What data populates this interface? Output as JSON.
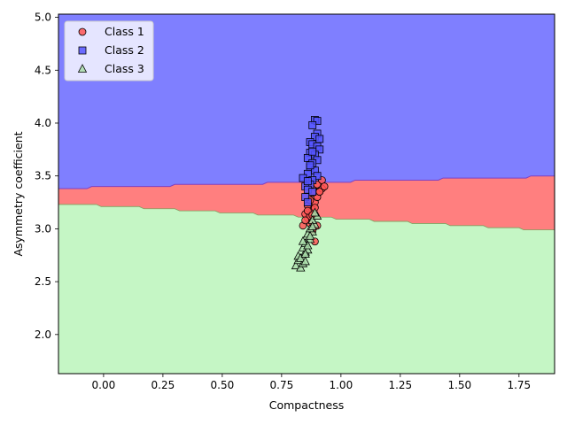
{
  "chart_data": {
    "type": "scatter",
    "title": "",
    "xlabel": "Compactness",
    "ylabel": "Asymmetry coefficient",
    "xlim": [
      -0.19,
      1.9
    ],
    "ylim": [
      1.63,
      5.03
    ],
    "x_ticks": [
      0.0,
      0.25,
      0.5,
      0.75,
      1.0,
      1.25,
      1.5,
      1.75
    ],
    "x_tick_labels": [
      "0.00",
      "0.25",
      "0.50",
      "0.75",
      "1.00",
      "1.25",
      "1.50",
      "1.75"
    ],
    "y_ticks": [
      2.0,
      2.5,
      3.0,
      3.5,
      4.0,
      4.5,
      5.0
    ],
    "y_tick_labels": [
      "2.0",
      "2.5",
      "3.0",
      "3.5",
      "4.0",
      "4.5",
      "5.0"
    ],
    "grid": false,
    "legend_position": "top-left",
    "decision_regions": {
      "colors": {
        "class_1": "#ff7f7f",
        "class_2": "#7f7fff",
        "class_3": "#c5f6c5"
      },
      "boundary_1_2": [
        [
          -0.19,
          3.38
        ],
        [
          -0.07,
          3.38
        ],
        [
          -0.05,
          3.4
        ],
        [
          0.28,
          3.4
        ],
        [
          0.3,
          3.42
        ],
        [
          0.67,
          3.42
        ],
        [
          0.69,
          3.44
        ],
        [
          1.04,
          3.44
        ],
        [
          1.06,
          3.46
        ],
        [
          1.41,
          3.46
        ],
        [
          1.43,
          3.48
        ],
        [
          1.78,
          3.48
        ],
        [
          1.8,
          3.5
        ],
        [
          1.9,
          3.5
        ]
      ],
      "boundary_1_3": [
        [
          -0.19,
          3.23
        ],
        [
          -0.03,
          3.23
        ],
        [
          -0.01,
          3.21
        ],
        [
          0.15,
          3.21
        ],
        [
          0.17,
          3.19
        ],
        [
          0.3,
          3.19
        ],
        [
          0.32,
          3.17
        ],
        [
          0.47,
          3.17
        ],
        [
          0.49,
          3.15
        ],
        [
          0.63,
          3.15
        ],
        [
          0.65,
          3.13
        ],
        [
          0.8,
          3.13
        ],
        [
          0.82,
          3.11
        ],
        [
          0.96,
          3.11
        ],
        [
          0.98,
          3.09
        ],
        [
          1.12,
          3.09
        ],
        [
          1.14,
          3.07
        ],
        [
          1.28,
          3.07
        ],
        [
          1.3,
          3.05
        ],
        [
          1.44,
          3.05
        ],
        [
          1.46,
          3.03
        ],
        [
          1.6,
          3.03
        ],
        [
          1.62,
          3.01
        ],
        [
          1.75,
          3.01
        ],
        [
          1.77,
          2.99
        ],
        [
          1.9,
          2.99
        ]
      ]
    },
    "series": [
      {
        "name": "Class 1",
        "marker": "circle",
        "color": "#ff5555",
        "points": [
          [
            0.84,
            3.03
          ],
          [
            0.86,
            3.1
          ],
          [
            0.85,
            3.14
          ],
          [
            0.87,
            3.12
          ],
          [
            0.88,
            3.18
          ],
          [
            0.86,
            3.22
          ],
          [
            0.89,
            3.25
          ],
          [
            0.9,
            3.3
          ],
          [
            0.88,
            3.34
          ],
          [
            0.91,
            3.36
          ],
          [
            0.92,
            3.38
          ],
          [
            0.9,
            3.42
          ],
          [
            0.92,
            3.46
          ],
          [
            0.89,
            3.2
          ],
          [
            0.87,
            3.05
          ],
          [
            0.88,
            2.98
          ],
          [
            0.89,
            2.88
          ],
          [
            0.86,
            3.17
          ],
          [
            0.9,
            3.03
          ],
          [
            0.91,
            3.35
          ],
          [
            0.87,
            3.27
          ],
          [
            0.93,
            3.4
          ],
          [
            0.85,
            3.08
          ],
          [
            0.88,
            3.13
          ]
        ]
      },
      {
        "name": "Class 2",
        "marker": "square",
        "color": "#5555ff",
        "points": [
          [
            0.89,
            4.03
          ],
          [
            0.9,
            4.02
          ],
          [
            0.88,
            3.98
          ],
          [
            0.9,
            3.9
          ],
          [
            0.89,
            3.87
          ],
          [
            0.87,
            3.82
          ],
          [
            0.88,
            3.8
          ],
          [
            0.9,
            3.78
          ],
          [
            0.91,
            3.75
          ],
          [
            0.87,
            3.72
          ],
          [
            0.89,
            3.7
          ],
          [
            0.86,
            3.67
          ],
          [
            0.9,
            3.65
          ],
          [
            0.88,
            3.62
          ],
          [
            0.87,
            3.58
          ],
          [
            0.89,
            3.55
          ],
          [
            0.86,
            3.52
          ],
          [
            0.9,
            3.5
          ],
          [
            0.84,
            3.48
          ],
          [
            0.88,
            3.46
          ],
          [
            0.87,
            3.42
          ],
          [
            0.85,
            3.4
          ],
          [
            0.86,
            3.37
          ],
          [
            0.88,
            3.35
          ],
          [
            0.85,
            3.3
          ],
          [
            0.86,
            3.25
          ],
          [
            0.87,
            3.6
          ],
          [
            0.91,
            3.85
          ],
          [
            0.88,
            3.73
          ],
          [
            0.86,
            3.45
          ]
        ]
      },
      {
        "name": "Class 3",
        "marker": "triangle",
        "color": "#aaddaa",
        "points": [
          [
            0.81,
            2.65
          ],
          [
            0.82,
            2.7
          ],
          [
            0.83,
            2.63
          ],
          [
            0.84,
            2.67
          ],
          [
            0.82,
            2.74
          ],
          [
            0.85,
            2.78
          ],
          [
            0.84,
            2.82
          ],
          [
            0.86,
            2.8
          ],
          [
            0.85,
            2.86
          ],
          [
            0.87,
            2.9
          ],
          [
            0.86,
            2.95
          ],
          [
            0.88,
            2.97
          ],
          [
            0.87,
            3.0
          ],
          [
            0.89,
            3.04
          ],
          [
            0.88,
            3.08
          ],
          [
            0.9,
            3.12
          ],
          [
            0.89,
            3.15
          ],
          [
            0.83,
            2.72
          ],
          [
            0.85,
            2.76
          ],
          [
            0.86,
            2.84
          ],
          [
            0.84,
            2.88
          ],
          [
            0.87,
            2.93
          ],
          [
            0.88,
            3.02
          ],
          [
            0.85,
            2.69
          ]
        ]
      }
    ]
  }
}
